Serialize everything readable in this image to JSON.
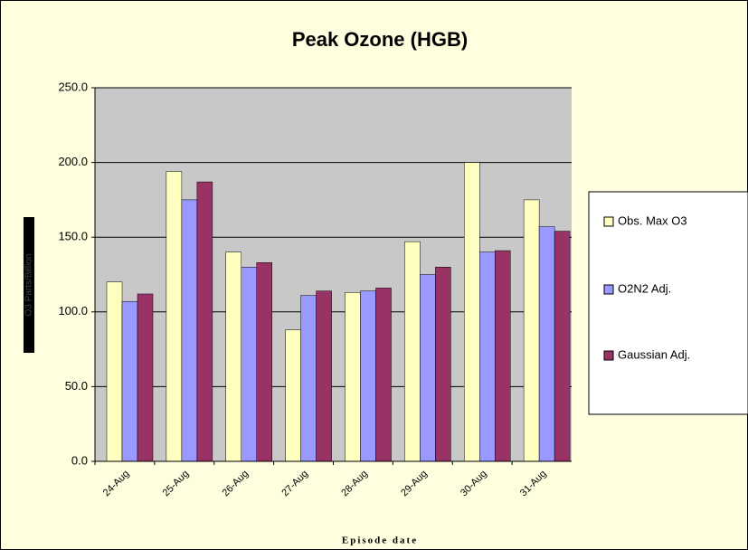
{
  "chart_data": {
    "type": "bar",
    "title": "Peak Ozone (HGB)",
    "x_label": "Episode date",
    "y_label": "O3 Parts/Billion",
    "categories": [
      "24-Aug",
      "25-Aug",
      "26-Aug",
      "27-Aug",
      "28-Aug",
      "29-Aug",
      "30-Aug",
      "31-Aug"
    ],
    "series": [
      {
        "name": "Obs. Max O3",
        "color": "#FFFFC0",
        "values": [
          120,
          194,
          140,
          88,
          113,
          147,
          200,
          175
        ]
      },
      {
        "name": "O2N2 Adj.",
        "color": "#9999FF",
        "values": [
          107,
          175,
          130,
          111,
          114,
          125,
          140,
          157
        ]
      },
      {
        "name": "Gaussian Adj.",
        "color": "#993366",
        "values": [
          112,
          187,
          133,
          114,
          116,
          130,
          141,
          154
        ]
      }
    ],
    "ylim": [
      0,
      250
    ],
    "yticks": [
      {
        "value": 0,
        "label": "0.0"
      },
      {
        "value": 50,
        "label": "50.0"
      },
      {
        "value": 100,
        "label": "100.0"
      },
      {
        "value": 150,
        "label": "150.0"
      },
      {
        "value": 200,
        "label": "200.0"
      },
      {
        "value": 250,
        "label": "250.0"
      }
    ],
    "grid": true,
    "legend": "right"
  }
}
